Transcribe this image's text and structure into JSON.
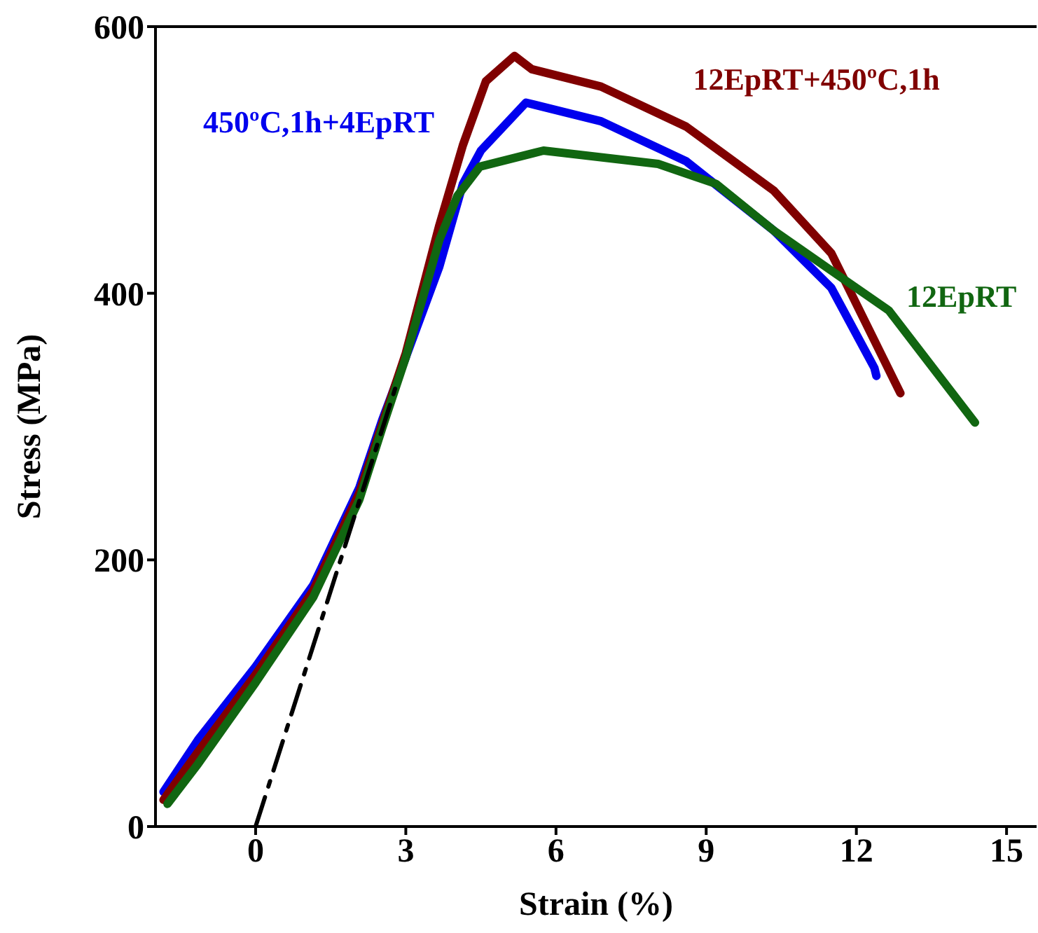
{
  "chart_data": {
    "type": "line",
    "xlabel": "Strain (%)",
    "ylabel": "Stress (MPa)",
    "xlim": [
      -2,
      15.6
    ],
    "ylim": [
      0,
      600
    ],
    "xticks": [
      0,
      3,
      6,
      9,
      12,
      15
    ],
    "yticks": [
      0,
      200,
      400,
      600
    ],
    "legend": false,
    "series": [
      {
        "name": "450ºC,1h+4EpRT",
        "color": "#0000ee",
        "x": [
          -1.84,
          -1.15,
          0,
          1.15,
          2.07,
          2.53,
          3,
          3.67,
          4.14,
          4.5,
          5.4,
          6.9,
          8.6,
          10.35,
          11.5,
          12.36,
          12.4
        ],
        "values": [
          26,
          65,
          120,
          181,
          254,
          305,
          352,
          420,
          482,
          507,
          543,
          529,
          499,
          447,
          404,
          344,
          338
        ]
      },
      {
        "name": "12EpRT+450ºC,1h",
        "color": "#800000",
        "x": [
          -1.84,
          -1.15,
          0,
          1.15,
          2.07,
          2.53,
          3,
          3.67,
          4.14,
          4.6,
          5.17,
          5.52,
          6.9,
          8.6,
          10.35,
          11.5,
          12.88
        ],
        "values": [
          20,
          56,
          114,
          177,
          250,
          302,
          355,
          451,
          511,
          559,
          578,
          568,
          555,
          525,
          477,
          430,
          325
        ]
      },
      {
        "name": "12EpRT",
        "color": "#116611",
        "x": [
          -1.76,
          -1.15,
          0,
          1.15,
          2.07,
          2.53,
          3,
          3.67,
          4.03,
          4.48,
          5.75,
          8.04,
          9.2,
          10.35,
          11.5,
          12.65,
          14.37
        ],
        "values": [
          17,
          47,
          108,
          172,
          245,
          299,
          352,
          440,
          473,
          495,
          507,
          497,
          482,
          447,
          417,
          387,
          303
        ]
      },
      {
        "color": "#000000",
        "line_style": "dashed",
        "x": [
          0,
          2.8
        ],
        "values": [
          0,
          330
        ]
      }
    ]
  }
}
